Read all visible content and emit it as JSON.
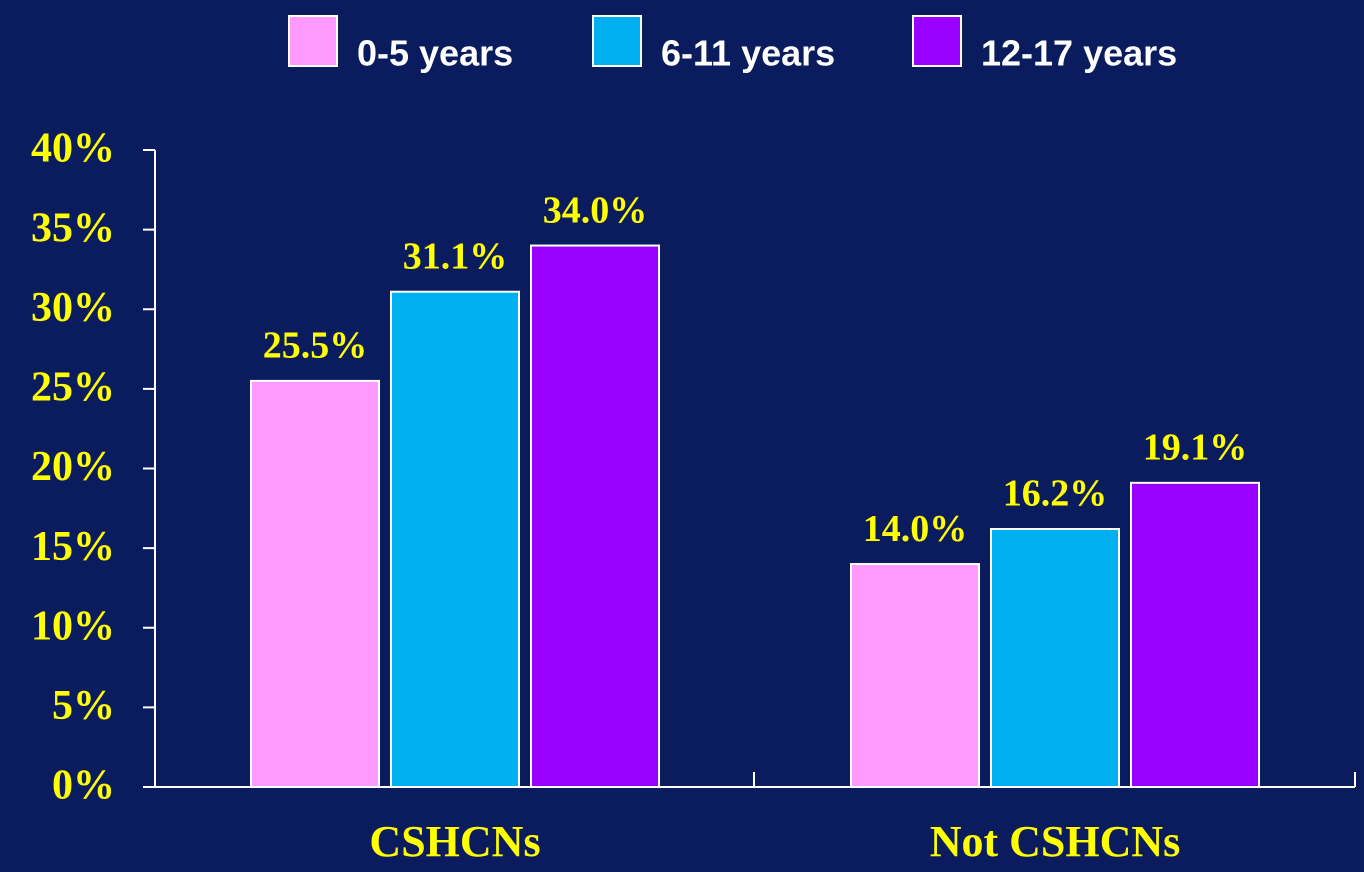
{
  "chart_data": {
    "type": "bar",
    "categories": [
      "CSHCNs",
      "Not CSHCNs"
    ],
    "series": [
      {
        "name": "0-5 years",
        "color": "#ff99ff",
        "values": [
          25.5,
          14.0
        ],
        "value_labels": [
          "25.5%",
          "14.0%"
        ]
      },
      {
        "name": "6-11 years",
        "color": "#00b0f0",
        "values": [
          31.1,
          16.2
        ],
        "value_labels": [
          "31.1%",
          "16.2%"
        ]
      },
      {
        "name": "12-17 years",
        "color": "#9900ff",
        "values": [
          34.0,
          19.1
        ],
        "value_labels": [
          "34.0%",
          "19.1%"
        ]
      }
    ],
    "ylim": [
      0,
      40
    ],
    "yticks": [
      {
        "value": 0,
        "label": "0%"
      },
      {
        "value": 5,
        "label": "5%"
      },
      {
        "value": 10,
        "label": "10%"
      },
      {
        "value": 15,
        "label": "15%"
      },
      {
        "value": 20,
        "label": "20%"
      },
      {
        "value": 25,
        "label": "25%"
      },
      {
        "value": 30,
        "label": "30%"
      },
      {
        "value": 35,
        "label": "35%"
      },
      {
        "value": 40,
        "label": "40%"
      }
    ],
    "legend": "top"
  }
}
